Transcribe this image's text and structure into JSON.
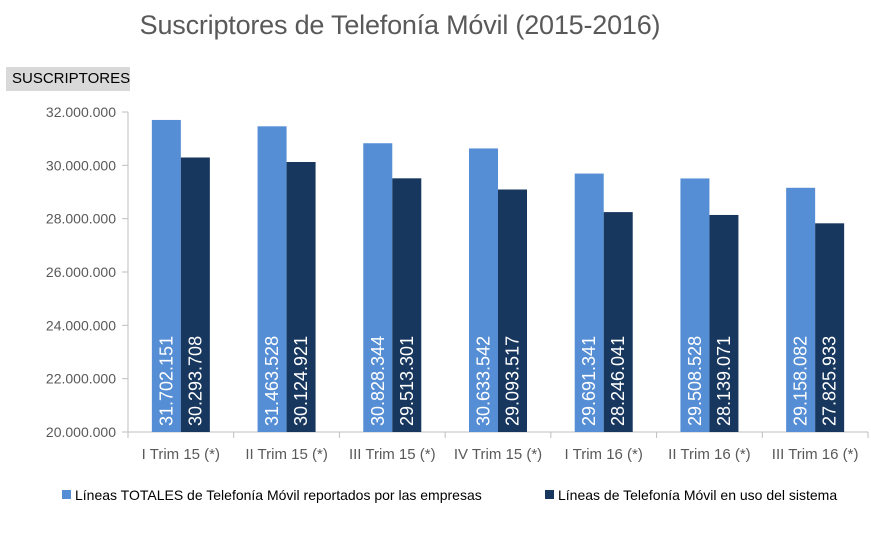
{
  "chart_data": {
    "type": "bar",
    "title": "Suscriptores de Telefonía Móvil (2015-2016)",
    "ylabel": "SUSCRIPTORES",
    "xlabel": "",
    "ylim": [
      20000000,
      32000000
    ],
    "yticks": [
      20000000,
      22000000,
      24000000,
      26000000,
      28000000,
      30000000,
      32000000
    ],
    "ytick_labels": [
      "20.000.000",
      "22.000.000",
      "24.000.000",
      "26.000.000",
      "28.000.000",
      "30.000.000",
      "32.000.000"
    ],
    "categories": [
      "I Trim 15 (*)",
      "II Trim 15 (*)",
      "III Trim 15 (*)",
      "IV Trim 15 (*)",
      "I Trim 16 (*)",
      "II Trim 16 (*)",
      "III Trim 16 (*)"
    ],
    "series": [
      {
        "name": "Líneas TOTALES de Telefonía Móvil reportados por las empresas",
        "color": "#558ed5",
        "values": [
          31702151,
          31463528,
          30828344,
          30633542,
          29691341,
          29508528,
          29158082
        ],
        "labels": [
          "31.702.151",
          "31.463.528",
          "30.828.344",
          "30.633.542",
          "29.691.341",
          "29.508.528",
          "29.158.082"
        ]
      },
      {
        "name": "Líneas de Telefonía Móvil en uso del sistema",
        "color": "#17375e",
        "values": [
          30293708,
          30124921,
          29513301,
          29093517,
          28246041,
          28139071,
          27825933
        ],
        "labels": [
          "30.293.708",
          "30.124.921",
          "29.513.301",
          "29.093.517",
          "28.246.041",
          "28.139.071",
          "27.825.933"
        ]
      }
    ],
    "grid": false,
    "legend_position": "bottom"
  }
}
